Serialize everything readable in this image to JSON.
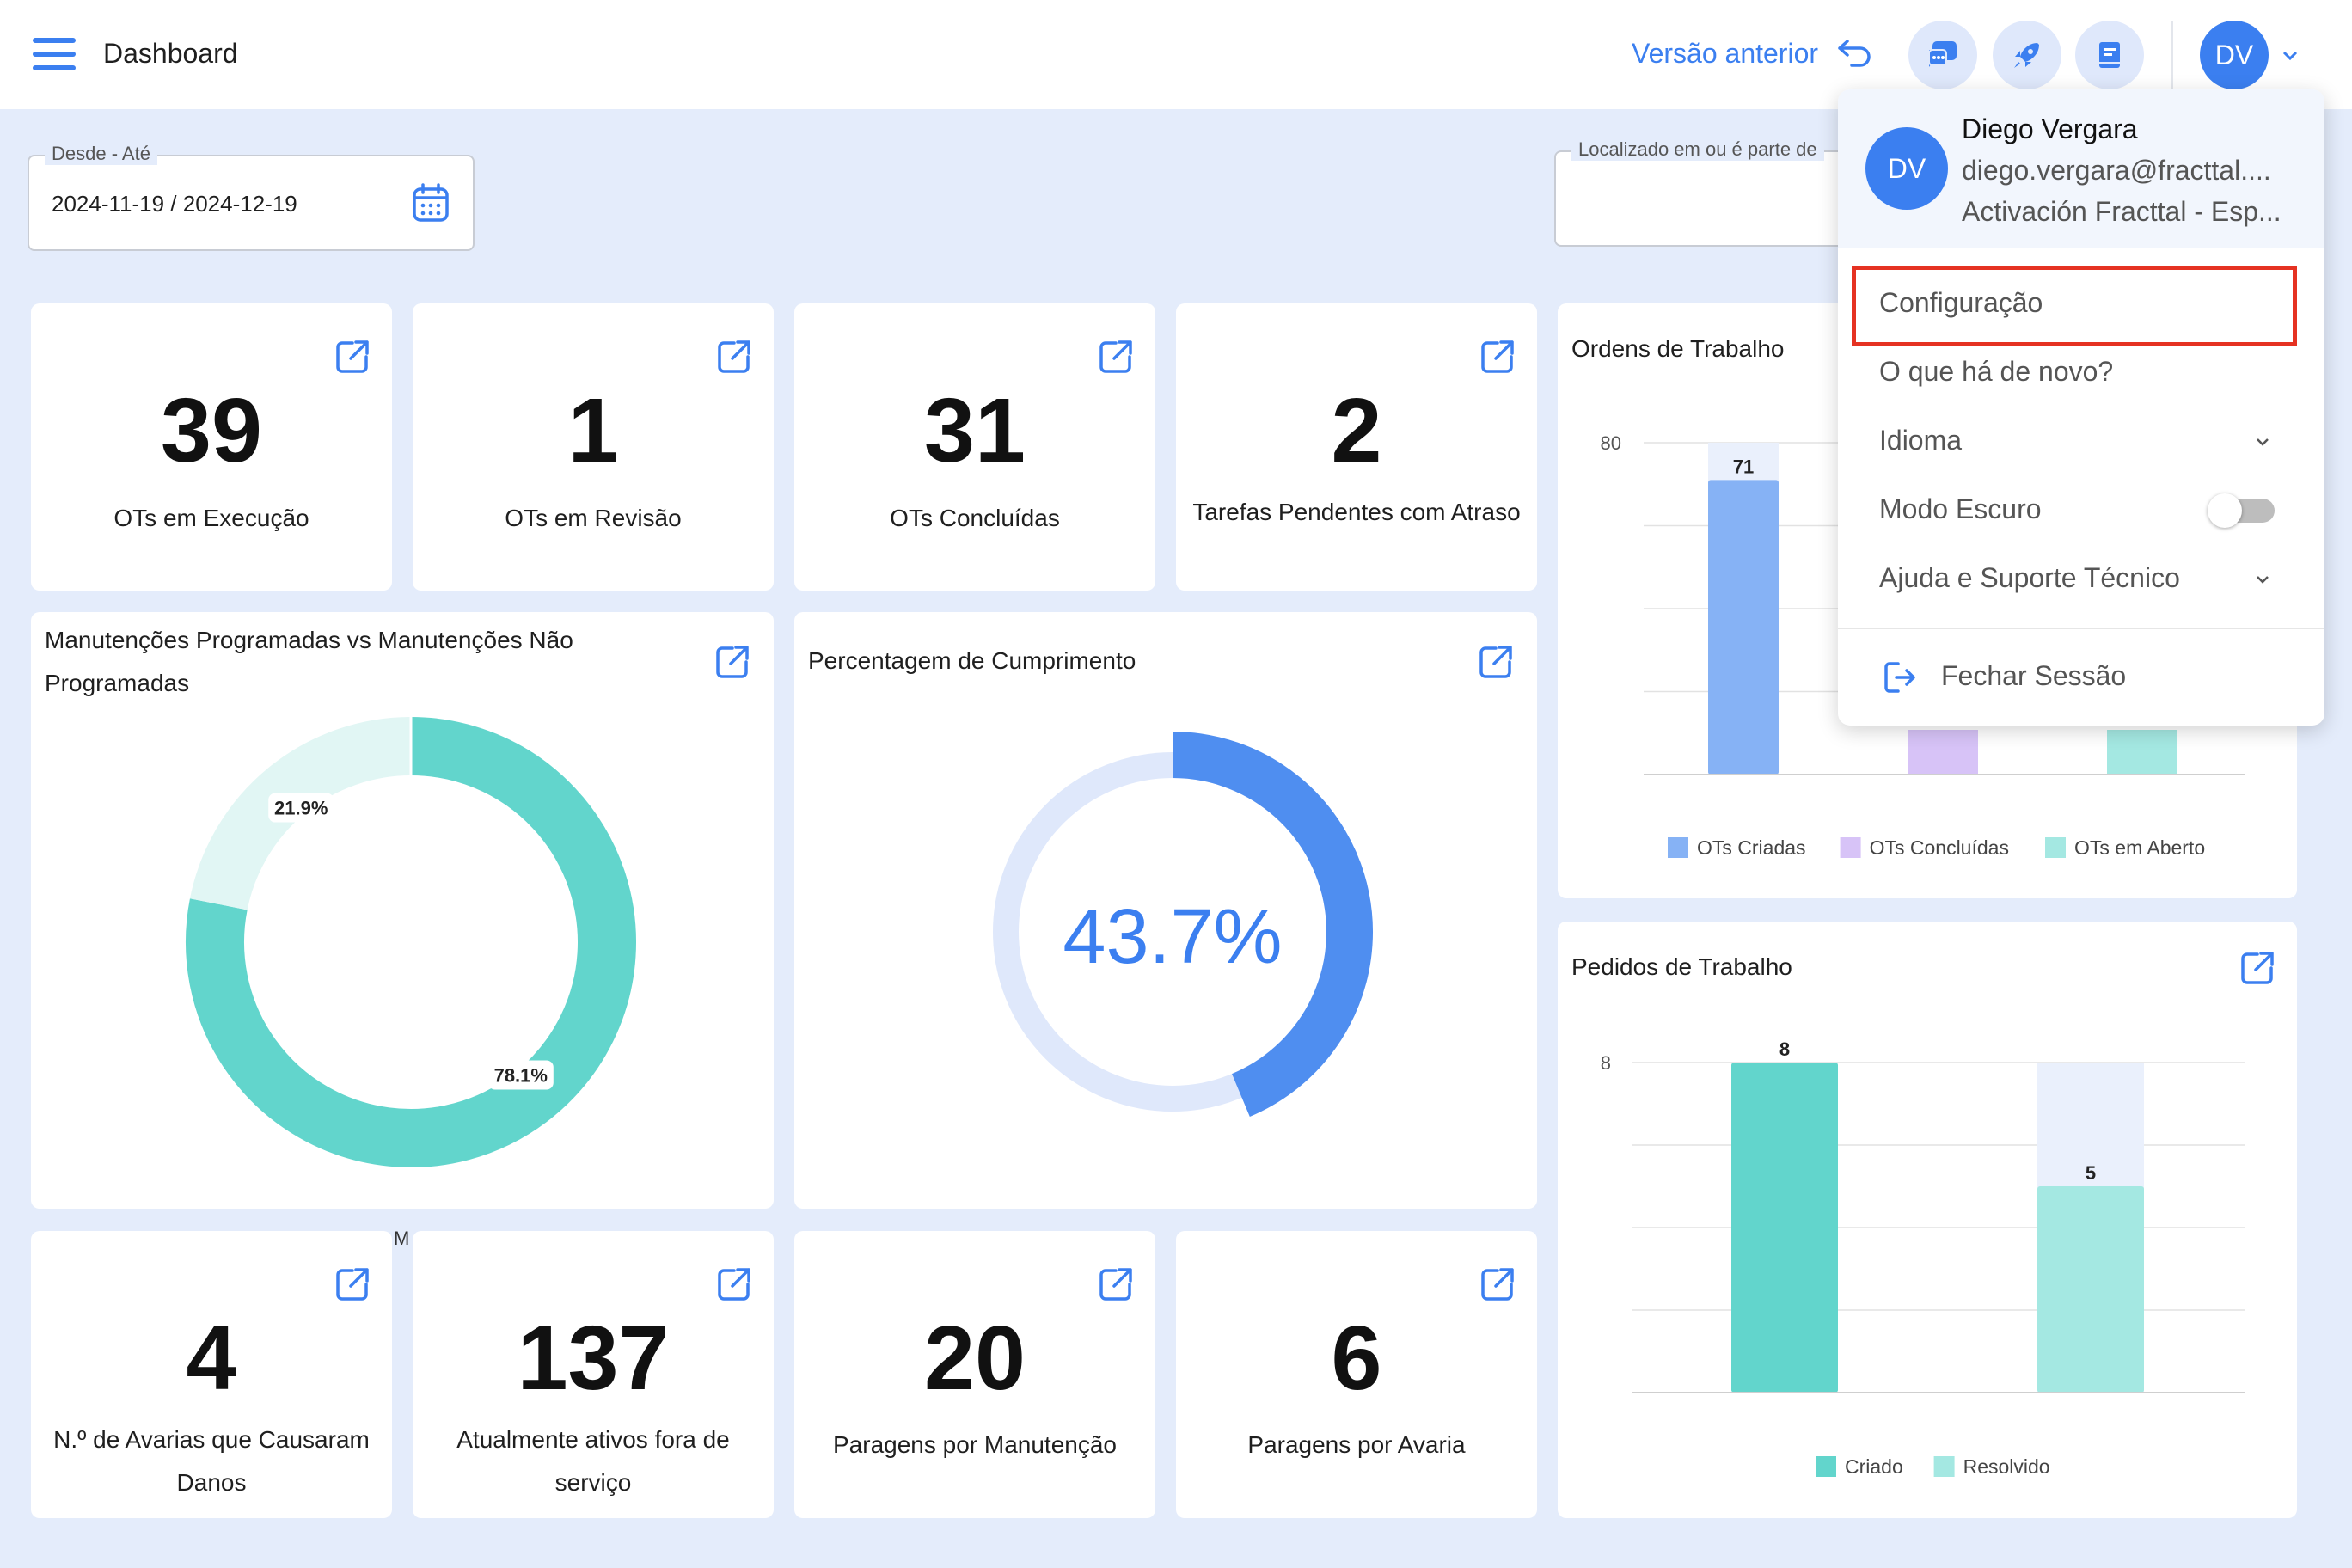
{
  "header": {
    "title": "Dashboard",
    "prev_version": "Versão anterior",
    "avatar_initials": "DV"
  },
  "filters": {
    "date_label": "Desde - Até",
    "date_value": "2024-11-19 / 2024-12-19",
    "location_label": "Localizado em ou é parte de"
  },
  "stats_top": [
    {
      "value": "39",
      "label": "OTs em Execução"
    },
    {
      "value": "1",
      "label": "OTs em Revisão"
    },
    {
      "value": "31",
      "label": "OTs Concluídas"
    },
    {
      "value": "2",
      "label": "Tarefas Pendentes com Atraso"
    }
  ],
  "stats_bottom": [
    {
      "value": "4",
      "label": "N.º de Avarias que Causaram Danos"
    },
    {
      "value": "137",
      "label": "Atualmente ativos fora de serviço"
    },
    {
      "value": "20",
      "label": "Paragens por Manutenção"
    },
    {
      "value": "6",
      "label": "Paragens por Avaria"
    }
  ],
  "donut_card": {
    "title": "Manutenções Programadas vs Manutenções Não Programadas",
    "partial_legend": "M"
  },
  "gauge_card": {
    "title": "Percentagem de Cumprimento",
    "value_label": "43.7%"
  },
  "orders_card": {
    "title": "Ordens de Trabalho"
  },
  "requests_card": {
    "title": "Pedidos de Trabalho"
  },
  "chart_data": [
    {
      "type": "pie",
      "title": "Manutenções Programadas vs Manutenções Não Programadas",
      "slices": [
        {
          "value": 78.1,
          "label": "78.1%",
          "color": "#62d5cc"
        },
        {
          "value": 21.9,
          "label": "21.9%",
          "color": "#e1f6f4"
        }
      ]
    },
    {
      "type": "pie",
      "title": "Percentagem de Cumprimento",
      "slices": [
        {
          "value": 43.7,
          "label": "43.7%",
          "color": "#4f8ef0"
        }
      ]
    },
    {
      "type": "bar",
      "title": "Ordens de Trabalho",
      "categories": [
        "OTs Criadas",
        "OTs Concluídas",
        "OTs em Aberto"
      ],
      "values": [
        71,
        null,
        null
      ],
      "value_labels": [
        "71",
        "",
        ""
      ],
      "colors": [
        "#86b2f5",
        "#d7c3f7",
        "#a4e8e2"
      ],
      "ytick": "80",
      "ylim": [
        0,
        80
      ],
      "legend": [
        "OTs Criadas",
        "OTs Concluídas",
        "OTs em Aberto"
      ]
    },
    {
      "type": "bar",
      "title": "Pedidos de Trabalho",
      "categories": [
        "Criado",
        "Resolvido"
      ],
      "values": [
        8,
        5
      ],
      "value_labels": [
        "8",
        "5"
      ],
      "colors": [
        "#62d5cc",
        "#a4e8e2"
      ],
      "ytick": "8",
      "ylim": [
        0,
        8
      ],
      "legend": [
        "Criado",
        "Resolvido"
      ]
    }
  ],
  "user_menu": {
    "name": "Diego Vergara",
    "email": "diego.vergara@fracttal....",
    "org": "Activación Fracttal - Esp...",
    "initials": "DV",
    "items": [
      "Configuração",
      "O que há de novo?",
      "Idioma",
      "Modo Escuro",
      "Ajuda e Suporte Técnico"
    ],
    "logout": "Fechar Sessão",
    "dark_mode": false
  },
  "colors": {
    "accent": "#3b7ff0",
    "highlight": "#e53222"
  }
}
